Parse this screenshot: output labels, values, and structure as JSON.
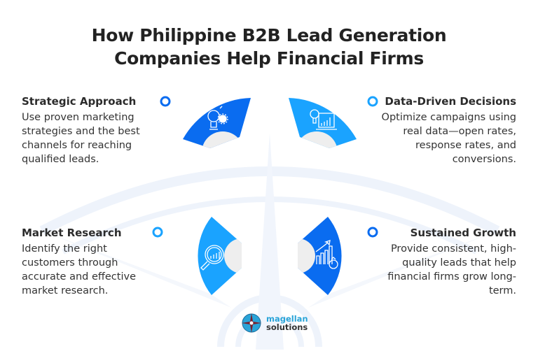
{
  "title_line1": "How Philippine B2B Lead Generation",
  "title_line2": "Companies Help Financial Firms",
  "colors": {
    "dark_blue": "#0a6cf0",
    "light_blue": "#1aa3ff",
    "gray_disc": "#eeeeee",
    "heading": "#222222"
  },
  "items": [
    {
      "heading": "Strategic Approach",
      "body": "Use proven marketing strategies and the best channels for reaching qualified leads.",
      "icon": "lightbulb-gear-icon"
    },
    {
      "heading": "Data-Driven Decisions",
      "body": "Optimize campaigns using real data—open rates, response rates, and conversions.",
      "icon": "lightbulb-laptop-chart-icon"
    },
    {
      "heading": "Market Research",
      "body": "Identify the right customers through accurate and effective market research.",
      "icon": "magnifier-chart-icon"
    },
    {
      "heading": "Sustained Growth",
      "body": "Provide consistent, high-quality leads that help financial firms grow long-term.",
      "icon": "growth-chart-money-bag-icon"
    }
  ],
  "logo": {
    "line1": "magellan",
    "line2": "solutions"
  }
}
